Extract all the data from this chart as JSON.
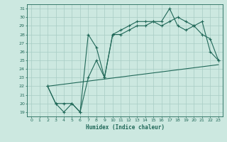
{
  "xlabel": "Humidex (Indice chaleur)",
  "xlim": [
    -0.5,
    23.5
  ],
  "ylim": [
    18.5,
    31.5
  ],
  "xticks": [
    0,
    1,
    2,
    3,
    4,
    5,
    6,
    7,
    8,
    9,
    10,
    11,
    12,
    13,
    14,
    15,
    16,
    17,
    18,
    19,
    20,
    21,
    22,
    23
  ],
  "yticks": [
    19,
    20,
    21,
    22,
    23,
    24,
    25,
    26,
    27,
    28,
    29,
    30,
    31
  ],
  "bg_color": "#cce8e0",
  "grid_color": "#a8ccc4",
  "line_color": "#206858",
  "line1_x": [
    2,
    3,
    4,
    5,
    6,
    7,
    8,
    9,
    10,
    11,
    12,
    13,
    14,
    15,
    16,
    17,
    18,
    19,
    20,
    21,
    22,
    23
  ],
  "line1_y": [
    22,
    20,
    19,
    20,
    19,
    28,
    26.5,
    23,
    28,
    28,
    28.5,
    29,
    29,
    29.5,
    29,
    29.5,
    30,
    29.5,
    29,
    29.5,
    26,
    25
  ],
  "line2_x": [
    2,
    3,
    4,
    5,
    6,
    7,
    8,
    9,
    10,
    11,
    12,
    13,
    14,
    15,
    16,
    17,
    18,
    19,
    20,
    21,
    22,
    23
  ],
  "line2_y": [
    22,
    20,
    20,
    20,
    19,
    23,
    25,
    23,
    28,
    28.5,
    29,
    29.5,
    29.5,
    29.5,
    29.5,
    31,
    29,
    28.5,
    29,
    28,
    27.5,
    25
  ],
  "line3_x": [
    2,
    23
  ],
  "line3_y": [
    22,
    24.5
  ]
}
